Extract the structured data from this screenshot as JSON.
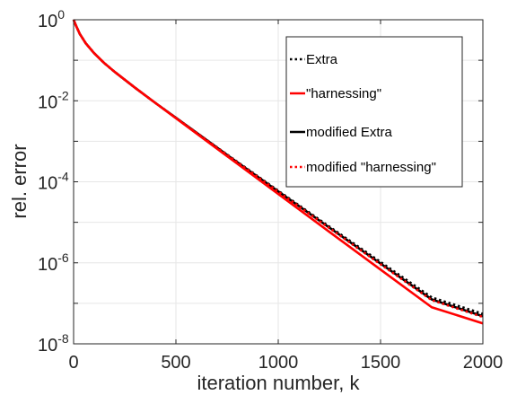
{
  "chart_data": {
    "type": "line",
    "title": "",
    "xlabel": "iteration number, k",
    "ylabel": "rel. error",
    "xlim": [
      0,
      2000
    ],
    "ylim": [
      1e-08,
      1
    ],
    "yscale": "log",
    "grid": true,
    "legend_position": "top-right",
    "xticks": [
      {
        "value": 0,
        "label": "0"
      },
      {
        "value": 500,
        "label": "500"
      },
      {
        "value": 1000,
        "label": "1000"
      },
      {
        "value": 1500,
        "label": "1500"
      },
      {
        "value": 2000,
        "label": "2000"
      }
    ],
    "yticks": [
      {
        "value": 1,
        "base": "10",
        "exp": "0"
      },
      {
        "value": 0.01,
        "base": "10",
        "exp": "-2"
      },
      {
        "value": 0.0001,
        "base": "10",
        "exp": "-4"
      },
      {
        "value": 1e-06,
        "base": "10",
        "exp": "-6"
      },
      {
        "value": 1e-08,
        "base": "10",
        "exp": "-8"
      }
    ],
    "series": [
      {
        "name": "Extra",
        "color": "#000000",
        "style": "dotted",
        "x": [
          0,
          10,
          30,
          60,
          100,
          150,
          200,
          300,
          400,
          500,
          750,
          1000,
          1250,
          1500,
          1750,
          2000
        ],
        "y": [
          1,
          0.75,
          0.45,
          0.26,
          0.15,
          0.085,
          0.052,
          0.021,
          0.0088,
          0.0038,
          0.00047,
          6e-05,
          7.8e-06,
          1.05e-06,
          1.4e-07,
          5.5e-08
        ]
      },
      {
        "name": "\"harnessing\"",
        "color": "#ff0000",
        "style": "solid",
        "x": [
          0,
          10,
          30,
          60,
          100,
          150,
          200,
          300,
          400,
          500,
          750,
          1000,
          1250,
          1500,
          1750,
          2000
        ],
        "y": [
          1,
          0.75,
          0.45,
          0.26,
          0.15,
          0.085,
          0.052,
          0.021,
          0.0088,
          0.0037,
          0.00043,
          5e-05,
          5.8e-06,
          6.8e-07,
          8e-08,
          3.2e-08
        ]
      },
      {
        "name": "modified Extra",
        "color": "#000000",
        "style": "solid",
        "x": [
          0,
          10,
          30,
          60,
          100,
          150,
          200,
          300,
          400,
          500,
          750,
          1000,
          1250,
          1500,
          1750,
          2000
        ],
        "y": [
          1,
          0.75,
          0.45,
          0.26,
          0.15,
          0.085,
          0.052,
          0.021,
          0.0088,
          0.0038,
          0.00046,
          5.8e-05,
          7.4e-06,
          9.6e-07,
          1.25e-07,
          4.8e-08
        ]
      },
      {
        "name": "modified \"harnessing\"",
        "color": "#ff0000",
        "style": "dotted",
        "x": [
          0,
          10,
          30,
          60,
          100,
          150,
          200,
          300,
          400,
          500,
          750,
          1000,
          1250,
          1500,
          1750,
          2000
        ],
        "y": [
          1,
          0.75,
          0.45,
          0.26,
          0.15,
          0.085,
          0.052,
          0.021,
          0.0088,
          0.0038,
          0.00046,
          5.7e-05,
          7.2e-06,
          9.2e-07,
          1.2e-07,
          4.6e-08
        ]
      }
    ]
  }
}
